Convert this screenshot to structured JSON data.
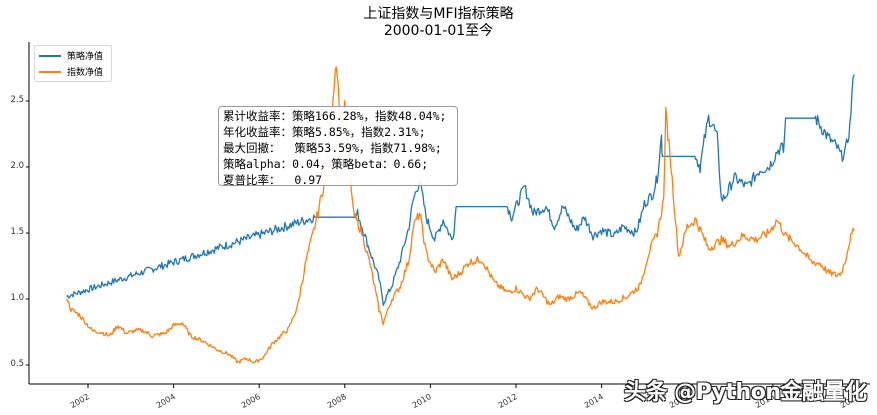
{
  "chart_data": {
    "type": "line",
    "title": "上证指数与MFI指标策略",
    "subtitle": "2000-01-01至今",
    "xlabel": "",
    "ylabel": "",
    "ylim": [
      0.42,
      2.95
    ],
    "xlim": [
      2000.6,
      2020.0
    ],
    "grid": false,
    "legend_position": "upper left",
    "yticks": [
      0.5,
      1.0,
      1.5,
      2.0,
      2.5
    ],
    "ytick_labels": [
      "0.5",
      "1.0",
      "1.5",
      "2.0",
      "2.5"
    ],
    "xticks": [
      2002,
      2004,
      2006,
      2008,
      2010,
      2012,
      2014,
      2016,
      2018,
      2020
    ],
    "xtick_labels": [
      "2002",
      "2004",
      "2006",
      "2008",
      "2010",
      "2012",
      "2014",
      "2016",
      "2018",
      "2020"
    ],
    "series": [
      {
        "name": "策略净值",
        "color": "#1f77b4",
        "x": [
          2001.5,
          2007.3,
          2007.3,
          2008.25,
          2008.3,
          2008.4,
          2008.6,
          2008.8,
          2008.9,
          2009.1,
          2009.3,
          2009.5,
          2009.6,
          2009.75,
          2009.9,
          2010.1,
          2010.3,
          2010.5,
          2010.55,
          2010.6,
          2011.8,
          2011.9,
          2012.2,
          2012.4,
          2012.7,
          2012.9,
          2013.1,
          2013.4,
          2013.6,
          2013.8,
          2014.0,
          2014.3,
          2014.5,
          2014.8,
          2014.9,
          2015.0,
          2015.2,
          2015.3,
          2015.4,
          2015.42,
          2016.2,
          2016.3,
          2016.4,
          2016.5,
          2016.6,
          2016.7,
          2016.8,
          2016.9,
          2017.1,
          2017.4,
          2017.7,
          2017.9,
          2018.0,
          2018.1,
          2018.2,
          2018.25,
          2018.3,
          2019.0,
          2019.1,
          2019.3,
          2019.5,
          2019.6,
          2019.7,
          2019.8,
          2019.85,
          2019.9
        ],
        "y": [
          1.02,
          1.62,
          1.62,
          1.62,
          1.65,
          1.55,
          1.35,
          1.15,
          0.97,
          1.1,
          1.3,
          1.55,
          1.75,
          1.9,
          1.62,
          1.45,
          1.6,
          1.45,
          1.52,
          1.7,
          1.7,
          1.62,
          1.85,
          1.65,
          1.7,
          1.55,
          1.7,
          1.52,
          1.62,
          1.48,
          1.52,
          1.48,
          1.55,
          1.5,
          1.6,
          1.72,
          1.8,
          1.92,
          2.23,
          2.08,
          2.08,
          2.0,
          2.2,
          2.37,
          2.32,
          2.22,
          1.75,
          1.78,
          1.92,
          1.85,
          1.98,
          2.0,
          2.05,
          2.12,
          2.15,
          2.12,
          2.37,
          2.37,
          2.32,
          2.22,
          2.15,
          2.08,
          2.12,
          2.3,
          2.55,
          2.7
        ]
      },
      {
        "name": "指数净值",
        "color": "#ff7f0e",
        "x": [
          2001.5,
          2001.6,
          2001.8,
          2002.0,
          2002.1,
          2002.3,
          2002.5,
          2002.7,
          2002.9,
          2003.1,
          2003.3,
          2003.5,
          2003.8,
          2004.0,
          2004.2,
          2004.4,
          2004.7,
          2005.0,
          2005.3,
          2005.5,
          2005.7,
          2005.9,
          2006.1,
          2006.3,
          2006.5,
          2006.7,
          2006.9,
          2007.1,
          2007.3,
          2007.5,
          2007.7,
          2007.8,
          2007.9,
          2008.0,
          2008.1,
          2008.2,
          2008.4,
          2008.6,
          2008.8,
          2008.9,
          2009.1,
          2009.3,
          2009.5,
          2009.6,
          2009.75,
          2009.9,
          2010.1,
          2010.3,
          2010.5,
          2010.7,
          2010.9,
          2011.2,
          2011.5,
          2011.8,
          2012.0,
          2012.3,
          2012.5,
          2012.8,
          2013.0,
          2013.2,
          2013.5,
          2013.8,
          2014.0,
          2014.3,
          2014.6,
          2014.9,
          2015.1,
          2015.3,
          2015.45,
          2015.5,
          2015.6,
          2015.7,
          2015.8,
          2016.0,
          2016.2,
          2016.5,
          2016.8,
          2017.0,
          2017.3,
          2017.6,
          2017.9,
          2018.1,
          2018.3,
          2018.6,
          2018.9,
          2019.1,
          2019.3,
          2019.5,
          2019.6,
          2019.7,
          2019.8,
          2019.9
        ],
        "y": [
          1.02,
          0.92,
          0.88,
          0.8,
          0.76,
          0.75,
          0.72,
          0.8,
          0.74,
          0.76,
          0.76,
          0.72,
          0.74,
          0.8,
          0.82,
          0.72,
          0.68,
          0.62,
          0.58,
          0.52,
          0.55,
          0.52,
          0.56,
          0.66,
          0.72,
          0.78,
          0.95,
          1.3,
          1.55,
          1.85,
          2.45,
          2.82,
          2.35,
          2.45,
          2.05,
          1.65,
          1.5,
          1.25,
          0.92,
          0.82,
          1.0,
          1.1,
          1.3,
          1.55,
          1.65,
          1.35,
          1.2,
          1.3,
          1.15,
          1.2,
          1.28,
          1.3,
          1.12,
          1.05,
          1.08,
          1.0,
          1.08,
          0.95,
          1.02,
          1.0,
          1.05,
          0.93,
          0.98,
          0.98,
          1.02,
          1.1,
          1.35,
          1.5,
          1.75,
          2.4,
          2.1,
          1.7,
          1.32,
          1.55,
          1.6,
          1.38,
          1.45,
          1.4,
          1.48,
          1.45,
          1.5,
          1.6,
          1.48,
          1.4,
          1.28,
          1.27,
          1.2,
          1.18,
          1.2,
          1.3,
          1.45,
          1.52
        ]
      }
    ]
  },
  "title": {
    "line1": "上证指数与MFI指标策略",
    "line2": "2000-01-01至今"
  },
  "legend": {
    "items": [
      {
        "label": "策略净值",
        "color": "#1f77b4"
      },
      {
        "label": "指数净值",
        "color": "#ff7f0e"
      }
    ]
  },
  "stats_box": {
    "lines": [
      "累计收益率：策略166.28%，指数48.04%;",
      "年化收益率：策略5.85%，指数2.31%;",
      "最大回撤：  策略53.59%，指数71.98%;",
      "策略alpha：0.04，策略beta：0.66;",
      "夏普比率：  0.97"
    ]
  },
  "watermark": {
    "text": "头条 @Python金融量化"
  }
}
